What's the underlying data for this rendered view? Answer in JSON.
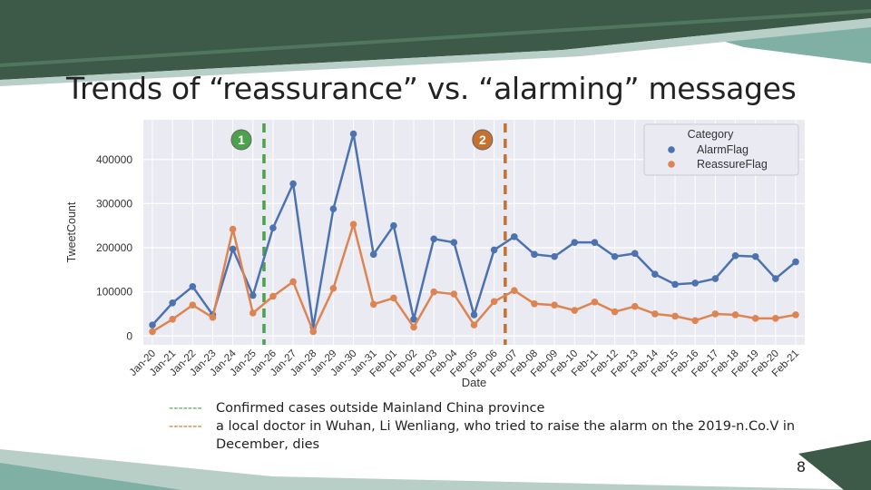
{
  "slide": {
    "title": "Trends of “reassurance” vs. “alarming” messages",
    "page_number": "8",
    "notes": [
      {
        "dash": "-------",
        "color": "#4aa34a",
        "text": "Confirmed cases outside Mainland China province"
      },
      {
        "dash": "-------",
        "color": "#c8702e",
        "text": "a local doctor in Wuhan, Li Wenliang, who tried to raise the alarm on the 2019-n.Co.V in December, dies"
      }
    ],
    "colors": {
      "banner_dark": "#3d5a48",
      "banner_light": "#b8cfc8",
      "banner_teal": "#7fb0a3"
    }
  },
  "chart_data": {
    "type": "line",
    "categories": [
      "Jan-20",
      "Jan-21",
      "Jan-22",
      "Jan-23",
      "Jan-24",
      "Jan-25",
      "Jan-26",
      "Jan-27",
      "Jan-28",
      "Jan-29",
      "Jan-30",
      "Jan-31",
      "Feb-01",
      "Feb-02",
      "Feb-03",
      "Feb-04",
      "Feb-05",
      "Feb-06",
      "Feb-07",
      "Feb-08",
      "Feb-09",
      "Feb-10",
      "Feb-11",
      "Feb-12",
      "Feb-13",
      "Feb-14",
      "Feb-15",
      "Feb-16",
      "Feb-17",
      "Feb-18",
      "Feb-19",
      "Feb-20",
      "Feb-21"
    ],
    "series": [
      {
        "name": "AlarmFlag",
        "color": "#4c72b0",
        "values": [
          25000,
          75000,
          112000,
          48000,
          197000,
          92000,
          245000,
          345000,
          20000,
          288000,
          458000,
          185000,
          250000,
          38000,
          220000,
          212000,
          48000,
          195000,
          225000,
          185000,
          180000,
          212000,
          212000,
          180000,
          187000,
          140000,
          117000,
          120000,
          130000,
          182000,
          180000,
          130000,
          168000
        ]
      },
      {
        "name": "ReassureFlag",
        "color": "#dd8452",
        "values": [
          10000,
          38000,
          70000,
          42000,
          242000,
          52000,
          90000,
          123000,
          10000,
          108000,
          253000,
          72000,
          86000,
          20000,
          100000,
          95000,
          25000,
          78000,
          103000,
          73000,
          70000,
          58000,
          77000,
          55000,
          67000,
          50000,
          45000,
          35000,
          50000,
          48000,
          40000,
          40000,
          48000
        ]
      }
    ],
    "xlabel": "Date",
    "ylabel": "TweetCount",
    "yticks": [
      0,
      100000,
      200000,
      300000,
      400000
    ],
    "ylim": [
      -20000,
      490000
    ],
    "legend": {
      "title": "Category",
      "placement": "top-right"
    },
    "markers": [
      {
        "label": "1",
        "category": "Jan-26",
        "color": "#4aa34a"
      },
      {
        "label": "2",
        "category": "Feb-07",
        "color": "#c8702e"
      }
    ],
    "grid": true
  }
}
